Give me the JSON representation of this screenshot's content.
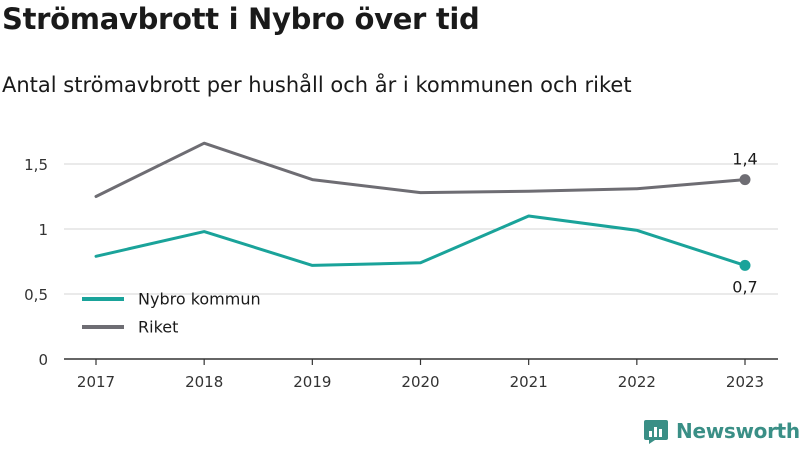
{
  "header": {
    "title": "Strömavbrott i Nybro över tid",
    "subtitle": "Antal strömavbrott per hushåll och år i kommunen och riket"
  },
  "brand": {
    "name": "Newsworthy",
    "icon": "newsworthy-logo-icon",
    "color": "#3a8f86"
  },
  "chart_data": {
    "type": "line",
    "title": "Strömavbrott i Nybro över tid",
    "subtitle": "Antal strömavbrott per hushåll och år i kommunen och riket",
    "xlabel": "",
    "ylabel": "",
    "categories": [
      "2017",
      "2018",
      "2019",
      "2020",
      "2021",
      "2022",
      "2023"
    ],
    "ylim": [
      0,
      1.7
    ],
    "yticks": [
      0,
      0.5,
      1,
      1.5
    ],
    "ytick_labels": [
      "0",
      "0,5",
      "1",
      "1,5"
    ],
    "grid": true,
    "legend_position": "bottom-left",
    "series": [
      {
        "name": "Nybro kommun",
        "color": "#1aa39a",
        "values": [
          0.79,
          0.98,
          0.72,
          0.74,
          1.1,
          0.99,
          0.72
        ],
        "end_label": "0,7"
      },
      {
        "name": "Riket",
        "color": "#6e6d73",
        "values": [
          1.25,
          1.66,
          1.38,
          1.28,
          1.29,
          1.31,
          1.38
        ],
        "end_label": "1,4"
      }
    ]
  }
}
